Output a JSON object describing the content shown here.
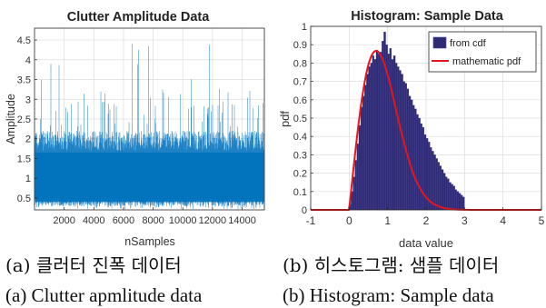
{
  "captions": {
    "a_ko": "(a) 클러터 진폭 데이터",
    "b_ko": "(b) 히스토그램: 샘플 데이터",
    "a_en": "(a) Clutter apmlitude data",
    "b_en": "(b) Histogram: Sample data"
  },
  "colors": {
    "signal": "#0072BD",
    "bar_fill": "#2E2A73",
    "bar_edge": "#4A46A0",
    "pdf_line": "#E8141A",
    "grid": "#DCDCDC",
    "axis": "#262626"
  },
  "chart_data": [
    {
      "type": "line",
      "title": "Clutter Amplitude Data",
      "xlabel": "nSamples",
      "ylabel": "Amplitude",
      "xlim": [
        0,
        15500
      ],
      "ylim": [
        0.2,
        4.8
      ],
      "xticks": [
        2000,
        4000,
        6000,
        8000,
        10000,
        12000,
        14000
      ],
      "xtick_labels": [
        "2000",
        "4000",
        "6000",
        "8000",
        "10000",
        "12000",
        "14000"
      ],
      "yticks": [
        0.5,
        1,
        1.5,
        2,
        2.5,
        3,
        3.5,
        4,
        4.5
      ],
      "ytick_labels": [
        "0.5",
        "1",
        "1.5",
        "2",
        "2.5",
        "3",
        "3.5",
        "4",
        "4.5"
      ],
      "grid": true,
      "series": [
        {
          "n_samples": 15500,
          "amplitude_summary": {
            "typical_min": 0.3,
            "typical_max": 2.2,
            "max": 4.7
          }
        }
      ]
    },
    {
      "type": "bar",
      "title": "Histogram: Sample Data",
      "xlabel": "data value",
      "ylabel": "pdf",
      "xlim": [
        -1,
        5
      ],
      "ylim": [
        0,
        1
      ],
      "xticks": [
        -1,
        0,
        1,
        2,
        3,
        4,
        5
      ],
      "xtick_labels": [
        "-1",
        "0",
        "1",
        "2",
        "3",
        "4",
        "5"
      ],
      "yticks": [
        0,
        0.1,
        0.2,
        0.3,
        0.4,
        0.5,
        0.6,
        0.7,
        0.8,
        0.9,
        1
      ],
      "ytick_labels": [
        "0",
        "0.1",
        "0.2",
        "0.3",
        "0.4",
        "0.5",
        "0.6",
        "0.7",
        "0.8",
        "0.9",
        "1"
      ],
      "grid": true,
      "legend": {
        "position": "top-right",
        "entries": [
          "from cdf",
          "mathematic pdf"
        ]
      },
      "series": [
        {
          "name": "from cdf",
          "kind": "histogram",
          "bin_width": 0.05,
          "bin_start": 0.0,
          "values": [
            0.03,
            0.1,
            0.18,
            0.27,
            0.36,
            0.46,
            0.56,
            0.62,
            0.68,
            0.74,
            0.78,
            0.8,
            0.84,
            0.82,
            0.87,
            0.85,
            0.86,
            0.92,
            0.97,
            0.9,
            0.85,
            0.88,
            0.82,
            0.84,
            0.8,
            0.78,
            0.76,
            0.74,
            0.7,
            0.69,
            0.66,
            0.62,
            0.6,
            0.57,
            0.55,
            0.52,
            0.5,
            0.47,
            0.45,
            0.41,
            0.39,
            0.37,
            0.34,
            0.32,
            0.3,
            0.28,
            0.26,
            0.24,
            0.22,
            0.2,
            0.18,
            0.17,
            0.15,
            0.14,
            0.13,
            0.11,
            0.1,
            0.09,
            0.08,
            0.07
          ]
        },
        {
          "name": "mathematic pdf",
          "kind": "rayleigh",
          "sigma": 0.7
        }
      ]
    }
  ]
}
